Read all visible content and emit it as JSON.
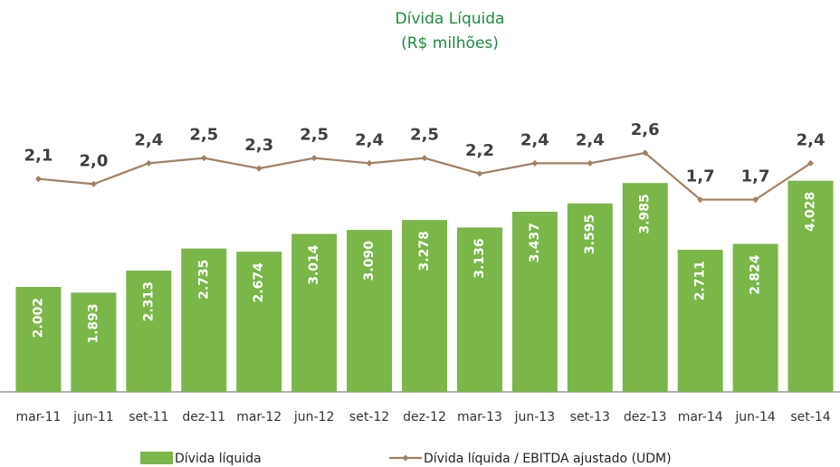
{
  "chart_data": {
    "type": "combo",
    "title": "Dívida Líquida",
    "subtitle": "(R$ milhões)",
    "categories": [
      "mar-11",
      "jun-11",
      "set-11",
      "dez-11",
      "mar-12",
      "jun-12",
      "set-12",
      "dez-12",
      "mar-13",
      "jun-13",
      "set-13",
      "dez-13",
      "mar-14",
      "jun-14",
      "set-14"
    ],
    "ylim": [
      0,
      5750
    ],
    "y2lim": [
      -2,
      3.8
    ],
    "series": [
      {
        "name": "Dívida líquida",
        "type": "bar",
        "color": "#7ab648",
        "values": [
          2002,
          1893,
          2313,
          2735,
          2674,
          3014,
          3090,
          3278,
          3136,
          3437,
          3595,
          3985,
          2711,
          2824,
          4028
        ],
        "value_labels": [
          "2.002",
          "1.893",
          "2.313",
          "2.735",
          "2.674",
          "3.014",
          "3.090",
          "3.278",
          "3.136",
          "3.437",
          "3.595",
          "3.985",
          "2.711",
          "2.824",
          "4.028"
        ]
      },
      {
        "name": "Dívida líquida / EBITDA ajustado (UDM)",
        "type": "line",
        "axis": "y2",
        "color": "#a08262",
        "values": [
          2.1,
          2.0,
          2.4,
          2.5,
          2.3,
          2.5,
          2.4,
          2.5,
          2.2,
          2.4,
          2.4,
          2.6,
          1.7,
          1.7,
          2.4
        ],
        "value_labels": [
          "2,1",
          "2,0",
          "2,4",
          "2,5",
          "2,3",
          "2,5",
          "2,4",
          "2,5",
          "2,2",
          "2,4",
          "2,4",
          "2,6",
          "1,7",
          "1,7",
          "2,4"
        ]
      }
    ]
  }
}
